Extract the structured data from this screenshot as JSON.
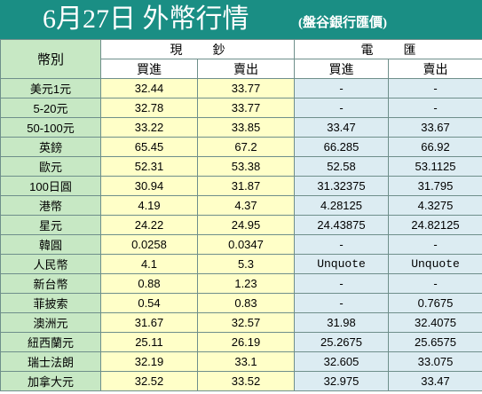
{
  "title": {
    "main": "6月27日 外幣行情",
    "sub": "(盤谷銀行匯價)"
  },
  "header": {
    "currency": "幣別",
    "cash": "現鈔",
    "wire": "電匯",
    "buy": "買進",
    "sell": "賣出"
  },
  "rows": [
    {
      "name": "美元1元",
      "cash_buy": "32.44",
      "cash_sell": "33.77",
      "wire_buy": "-",
      "wire_sell": "-"
    },
    {
      "name": "5-20元",
      "cash_buy": "32.78",
      "cash_sell": "33.77",
      "wire_buy": "-",
      "wire_sell": "-"
    },
    {
      "name": "50-100元",
      "cash_buy": "33.22",
      "cash_sell": "33.85",
      "wire_buy": "33.47",
      "wire_sell": "33.67"
    },
    {
      "name": "英鎊",
      "cash_buy": "65.45",
      "cash_sell": "67.2",
      "wire_buy": "66.285",
      "wire_sell": "66.92"
    },
    {
      "name": "歐元",
      "cash_buy": "52.31",
      "cash_sell": "53.38",
      "wire_buy": "52.58",
      "wire_sell": "53.1125"
    },
    {
      "name": "100日圓",
      "cash_buy": "30.94",
      "cash_sell": "31.87",
      "wire_buy": "31.32375",
      "wire_sell": "31.795"
    },
    {
      "name": "港幣",
      "cash_buy": "4.19",
      "cash_sell": "4.37",
      "wire_buy": "4.28125",
      "wire_sell": "4.3275"
    },
    {
      "name": "星元",
      "cash_buy": "24.22",
      "cash_sell": "24.95",
      "wire_buy": "24.43875",
      "wire_sell": "24.82125"
    },
    {
      "name": "韓圓",
      "cash_buy": "0.0258",
      "cash_sell": "0.0347",
      "wire_buy": "-",
      "wire_sell": "-"
    },
    {
      "name": "人民幣",
      "cash_buy": "4.1",
      "cash_sell": "5.3",
      "wire_buy": "Unquote",
      "wire_sell": "Unquote"
    },
    {
      "name": "新台幣",
      "cash_buy": "0.88",
      "cash_sell": "1.23",
      "wire_buy": "-",
      "wire_sell": "-"
    },
    {
      "name": "菲披索",
      "cash_buy": "0.54",
      "cash_sell": "0.83",
      "wire_buy": "-",
      "wire_sell": "0.7675"
    },
    {
      "name": "澳洲元",
      "cash_buy": "31.67",
      "cash_sell": "32.57",
      "wire_buy": "31.98",
      "wire_sell": "32.4075"
    },
    {
      "name": "紐西蘭元",
      "cash_buy": "25.11",
      "cash_sell": "26.19",
      "wire_buy": "25.2675",
      "wire_sell": "25.6575"
    },
    {
      "name": "瑞士法朗",
      "cash_buy": "32.19",
      "cash_sell": "33.1",
      "wire_buy": "32.605",
      "wire_sell": "33.075"
    },
    {
      "name": "加拿大元",
      "cash_buy": "32.52",
      "cash_sell": "33.52",
      "wire_buy": "32.975",
      "wire_sell": "33.47"
    }
  ],
  "colors": {
    "title_bg": "#1a8e84",
    "currency_bg": "#c7e8c4",
    "cash_bg": "#ffffc8",
    "wire_bg": "#dcecf2",
    "border": "#6f8f8b"
  }
}
